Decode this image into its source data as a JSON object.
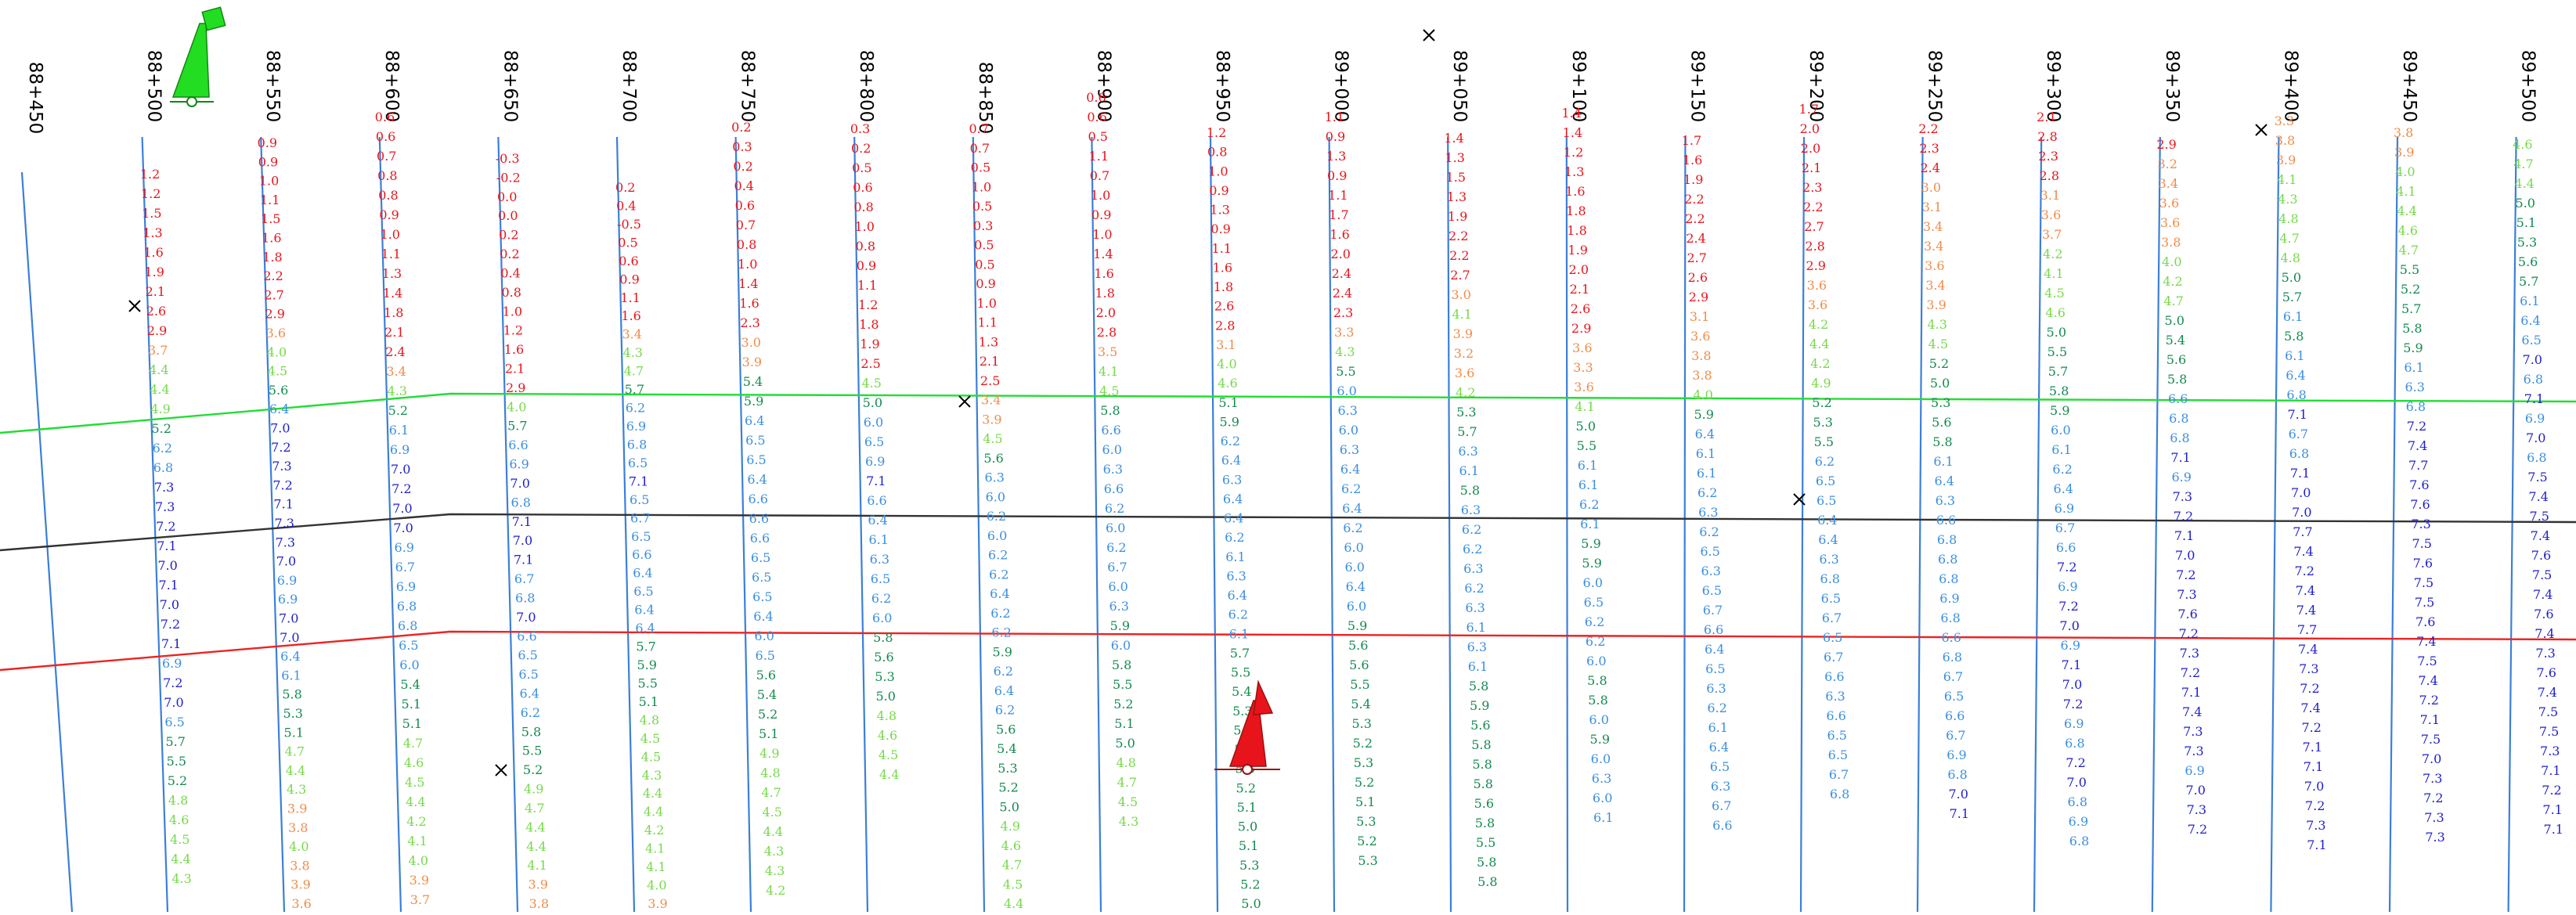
{
  "stations": [
    "88+450",
    "88+500",
    "88+550",
    "88+600",
    "88+650",
    "88+700",
    "88+750",
    "88+800",
    "88+850",
    "88+900",
    "88+950",
    "89+000",
    "89+050",
    "89+100",
    "89+150",
    "89+200",
    "89+250",
    "89+300",
    "89+350",
    "89+400",
    "89+450",
    "89+500"
  ],
  "depth_colors": {
    "red": "#e8141b",
    "orange": "#f08c4a",
    "light_green": "#77d94a",
    "green": "#138a4f",
    "light_blue": "#3b8fe0",
    "blue": "#1f1fcc"
  },
  "line_colors": {
    "station_line": "#3b7fd9",
    "top_line": "#22dd33",
    "mid_line": "#333333",
    "bottom_line": "#ee2222"
  },
  "icons": [
    "green-buoy-icon",
    "red-buoy-icon",
    "x-marker-icon"
  ],
  "soundings": [
    {
      "station": "88+500",
      "values": [
        "1.2",
        "1.2",
        "1.5",
        "1.3",
        "1.6",
        "1.9",
        "2.1",
        "2.6",
        "2.9",
        "3.7",
        "4.4",
        "4.4",
        "4.9",
        "5.2",
        "6.2",
        "6.8",
        "7.3",
        "7.3",
        "7.2",
        "7.1",
        "7.0",
        "7.1",
        "7.0",
        "7.2",
        "7.1",
        "6.9",
        "7.2",
        "7.0",
        "6.5",
        "5.7",
        "5.5",
        "5.2",
        "4.8",
        "4.6",
        "4.5",
        "4.4",
        "4.3"
      ]
    },
    {
      "station": "88+550",
      "values": [
        "0.9",
        "0.9",
        "1.0",
        "1.1",
        "1.5",
        "1.6",
        "1.8",
        "2.2",
        "2.7",
        "2.9",
        "3.6",
        "4.0",
        "4.5",
        "5.6",
        "6.4",
        "7.0",
        "7.2",
        "7.3",
        "7.2",
        "7.1",
        "7.3",
        "7.3",
        "7.0",
        "6.9",
        "6.9",
        "7.0",
        "7.0",
        "6.4",
        "6.1",
        "5.8",
        "5.3",
        "5.1",
        "4.7",
        "4.4",
        "4.3",
        "3.9",
        "3.8",
        "4.0",
        "3.8",
        "3.9",
        "3.6"
      ]
    },
    {
      "station": "88+600",
      "values": [
        "0.6",
        "0.6",
        "0.7",
        "0.8",
        "0.8",
        "0.9",
        "1.0",
        "1.1",
        "1.3",
        "1.4",
        "1.8",
        "2.1",
        "2.4",
        "3.4",
        "4.3",
        "5.2",
        "6.1",
        "6.9",
        "7.0",
        "7.2",
        "7.0",
        "7.0",
        "6.9",
        "6.7",
        "6.9",
        "6.8",
        "6.8",
        "6.5",
        "6.0",
        "5.4",
        "5.1",
        "5.1",
        "4.7",
        "4.6",
        "4.5",
        "4.4",
        "4.2",
        "4.1",
        "4.0",
        "3.9",
        "3.7"
      ]
    },
    {
      "station": "88+650",
      "values": [
        "-0.3",
        "-0.2",
        "0.0",
        "0.0",
        "0.2",
        "0.2",
        "0.4",
        "0.8",
        "1.0",
        "1.2",
        "1.6",
        "2.1",
        "2.9",
        "4.0",
        "5.7",
        "6.6",
        "6.9",
        "7.0",
        "6.8",
        "7.1",
        "7.0",
        "7.1",
        "6.7",
        "6.8",
        "7.0",
        "6.6",
        "6.5",
        "6.5",
        "6.4",
        "6.2",
        "5.8",
        "5.5",
        "5.2",
        "4.9",
        "4.7",
        "4.4",
        "4.4",
        "4.1",
        "3.9",
        "3.8"
      ]
    },
    {
      "station": "88+700",
      "values": [
        "0.2",
        "0.4",
        "-0.5",
        "0.5",
        "0.6",
        "0.9",
        "1.1",
        "1.6",
        "3.4",
        "4.3",
        "4.7",
        "5.7",
        "6.2",
        "6.9",
        "6.8",
        "6.5",
        "7.1",
        "6.5",
        "6.7",
        "6.5",
        "6.6",
        "6.4",
        "6.5",
        "6.4",
        "6.4",
        "5.7",
        "5.9",
        "5.5",
        "5.1",
        "4.8",
        "4.5",
        "4.5",
        "4.3",
        "4.4",
        "4.4",
        "4.2",
        "4.1",
        "4.1",
        "4.0",
        "3.9"
      ]
    },
    {
      "station": "88+750",
      "values": [
        "0.2",
        "0.3",
        "0.2",
        "0.4",
        "0.6",
        "0.7",
        "0.8",
        "1.0",
        "1.4",
        "1.6",
        "2.3",
        "3.0",
        "3.9",
        "5.4",
        "5.9",
        "6.4",
        "6.5",
        "6.5",
        "6.4",
        "6.6",
        "6.6",
        "6.6",
        "6.5",
        "6.5",
        "6.5",
        "6.4",
        "6.0",
        "6.5",
        "5.6",
        "5.4",
        "5.2",
        "5.1",
        "4.9",
        "4.8",
        "4.7",
        "4.5",
        "4.4",
        "4.3",
        "4.3",
        "4.2"
      ]
    },
    {
      "station": "88+800",
      "values": [
        "0.3",
        "0.2",
        "0.5",
        "0.6",
        "0.8",
        "1.0",
        "0.8",
        "0.9",
        "1.1",
        "1.2",
        "1.8",
        "1.9",
        "2.5",
        "4.5",
        "5.0",
        "6.0",
        "6.5",
        "6.9",
        "7.1",
        "6.6",
        "6.4",
        "6.1",
        "6.3",
        "6.5",
        "6.2",
        "6.0",
        "5.8",
        "5.6",
        "5.3",
        "5.0",
        "4.8",
        "4.6",
        "4.5",
        "4.4"
      ]
    },
    {
      "station": "88+850",
      "values": [
        "0.7",
        "0.7",
        "0.5",
        "1.0",
        "0.5",
        "0.3",
        "0.5",
        "0.5",
        "0.9",
        "1.0",
        "1.1",
        "1.3",
        "2.1",
        "2.5",
        "3.4",
        "3.9",
        "4.5",
        "5.6",
        "6.3",
        "6.0",
        "6.2",
        "6.0",
        "6.2",
        "6.2",
        "6.4",
        "6.2",
        "6.2",
        "5.9",
        "6.2",
        "6.4",
        "6.2",
        "5.6",
        "5.4",
        "5.3",
        "5.2",
        "5.0",
        "4.9",
        "4.6",
        "4.7",
        "4.5",
        "4.4"
      ]
    },
    {
      "station": "88+900",
      "values": [
        "0.6",
        "0.6",
        "0.5",
        "1.1",
        "0.7",
        "1.0",
        "0.9",
        "1.0",
        "1.4",
        "1.6",
        "1.8",
        "2.0",
        "2.8",
        "3.5",
        "4.1",
        "4.5",
        "5.8",
        "6.6",
        "6.0",
        "6.3",
        "6.6",
        "6.2",
        "6.0",
        "6.2",
        "6.7",
        "6.0",
        "6.3",
        "5.9",
        "6.0",
        "5.8",
        "5.5",
        "5.2",
        "5.1",
        "5.0",
        "4.8",
        "4.7",
        "4.5",
        "4.3"
      ]
    },
    {
      "station": "88+950",
      "values": [
        "1.2",
        "0.8",
        "1.0",
        "0.9",
        "1.3",
        "0.9",
        "1.1",
        "1.6",
        "1.8",
        "2.6",
        "2.8",
        "3.1",
        "4.0",
        "4.6",
        "5.1",
        "5.9",
        "6.2",
        "6.4",
        "6.3",
        "6.4",
        "6.4",
        "6.2",
        "6.1",
        "6.3",
        "6.4",
        "6.2",
        "6.1",
        "5.7",
        "5.5",
        "5.4",
        "5.3",
        "5.3",
        "5.4",
        "5.3",
        "5.2",
        "5.1",
        "5.0",
        "5.1",
        "5.3",
        "5.2",
        "5.0"
      ]
    },
    {
      "station": "89+000",
      "values": [
        "1.1",
        "0.9",
        "1.3",
        "0.9",
        "1.1",
        "1.7",
        "1.6",
        "2.0",
        "2.4",
        "2.4",
        "2.3",
        "3.3",
        "4.3",
        "5.5",
        "6.0",
        "6.3",
        "6.0",
        "6.3",
        "6.4",
        "6.2",
        "6.4",
        "6.2",
        "6.0",
        "6.0",
        "6.4",
        "6.0",
        "5.9",
        "5.6",
        "5.6",
        "5.5",
        "5.4",
        "5.3",
        "5.2",
        "5.3",
        "5.2",
        "5.1",
        "5.3",
        "5.2",
        "5.3"
      ]
    },
    {
      "station": "89+050",
      "values": [
        "1.4",
        "1.3",
        "1.5",
        "1.3",
        "1.9",
        "2.2",
        "2.2",
        "2.7",
        "3.0",
        "4.1",
        "3.9",
        "3.2",
        "3.6",
        "4.2",
        "5.3",
        "5.7",
        "6.3",
        "6.1",
        "5.8",
        "6.3",
        "6.2",
        "6.2",
        "6.3",
        "6.2",
        "6.3",
        "6.1",
        "6.3",
        "6.1",
        "5.8",
        "5.9",
        "5.6",
        "5.8",
        "5.8",
        "5.8",
        "5.6",
        "5.8",
        "5.5",
        "5.8",
        "5.8"
      ]
    },
    {
      "station": "89+100",
      "values": [
        "1.4",
        "1.4",
        "1.2",
        "1.3",
        "1.6",
        "1.8",
        "1.8",
        "1.9",
        "2.0",
        "2.1",
        "2.6",
        "2.9",
        "3.6",
        "3.3",
        "3.6",
        "4.1",
        "5.0",
        "5.5",
        "6.1",
        "6.1",
        "6.2",
        "6.1",
        "5.9",
        "5.9",
        "6.0",
        "6.5",
        "6.2",
        "6.2",
        "6.0",
        "5.8",
        "5.8",
        "6.0",
        "5.9",
        "6.0",
        "6.3",
        "6.0",
        "6.1"
      ]
    },
    {
      "station": "89+150",
      "values": [
        "1.7",
        "1.6",
        "1.9",
        "2.2",
        "2.2",
        "2.4",
        "2.7",
        "2.6",
        "2.9",
        "3.1",
        "3.6",
        "3.8",
        "3.8",
        "4.0",
        "5.9",
        "6.4",
        "6.1",
        "6.1",
        "6.2",
        "6.3",
        "6.2",
        "6.5",
        "6.3",
        "6.5",
        "6.7",
        "6.6",
        "6.4",
        "6.5",
        "6.3",
        "6.2",
        "6.1",
        "6.4",
        "6.5",
        "6.3",
        "6.7",
        "6.6"
      ]
    },
    {
      "station": "89+200",
      "values": [
        "1.7",
        "2.0",
        "2.0",
        "2.1",
        "2.3",
        "2.2",
        "2.7",
        "2.8",
        "2.9",
        "3.6",
        "3.6",
        "4.2",
        "4.4",
        "4.2",
        "4.9",
        "5.2",
        "5.3",
        "5.5",
        "6.2",
        "6.5",
        "6.5",
        "6.4",
        "6.4",
        "6.3",
        "6.8",
        "6.5",
        "6.7",
        "6.5",
        "6.7",
        "6.6",
        "6.3",
        "6.6",
        "6.5",
        "6.5",
        "6.7",
        "6.8"
      ]
    },
    {
      "station": "89+250",
      "values": [
        "2.2",
        "2.3",
        "2.4",
        "3.0",
        "3.1",
        "3.4",
        "3.4",
        "3.6",
        "3.4",
        "3.9",
        "4.3",
        "4.5",
        "5.2",
        "5.0",
        "5.3",
        "5.6",
        "5.8",
        "6.1",
        "6.4",
        "6.3",
        "6.6",
        "6.8",
        "6.8",
        "6.8",
        "6.9",
        "6.8",
        "6.6",
        "6.8",
        "6.7",
        "6.5",
        "6.6",
        "6.7",
        "6.9",
        "6.8",
        "7.0",
        "7.1"
      ]
    },
    {
      "station": "89+300",
      "values": [
        "2.1",
        "2.8",
        "2.3",
        "2.8",
        "3.1",
        "3.6",
        "3.7",
        "4.2",
        "4.1",
        "4.5",
        "4.6",
        "5.0",
        "5.5",
        "5.7",
        "5.8",
        "5.9",
        "6.0",
        "6.1",
        "6.2",
        "6.4",
        "6.9",
        "6.7",
        "6.6",
        "7.2",
        "6.9",
        "7.2",
        "7.0",
        "6.9",
        "7.1",
        "7.0",
        "7.2",
        "6.9",
        "6.8",
        "7.2",
        "7.0",
        "6.8",
        "6.9",
        "6.8"
      ]
    },
    {
      "station": "89+350",
      "values": [
        "2.9",
        "3.2",
        "3.4",
        "3.6",
        "3.6",
        "3.8",
        "4.0",
        "4.2",
        "4.7",
        "5.0",
        "5.4",
        "5.6",
        "5.8",
        "6.6",
        "6.8",
        "6.8",
        "7.1",
        "6.9",
        "7.3",
        "7.2",
        "7.1",
        "7.0",
        "7.2",
        "7.3",
        "7.6",
        "7.2",
        "7.3",
        "7.2",
        "7.1",
        "7.4",
        "7.3",
        "7.3",
        "6.9",
        "7.0",
        "7.3",
        "7.2"
      ]
    },
    {
      "station": "89+400",
      "values": [
        "3.3",
        "3.8",
        "3.9",
        "4.1",
        "4.3",
        "4.8",
        "4.7",
        "4.8",
        "5.0",
        "5.7",
        "6.1",
        "5.8",
        "6.1",
        "6.4",
        "6.8",
        "7.1",
        "6.7",
        "6.8",
        "7.1",
        "7.0",
        "7.0",
        "7.7",
        "7.4",
        "7.2",
        "7.4",
        "7.4",
        "7.7",
        "7.4",
        "7.3",
        "7.2",
        "7.4",
        "7.2",
        "7.1",
        "7.1",
        "7.0",
        "7.2",
        "7.3",
        "7.1"
      ]
    },
    {
      "station": "89+450",
      "values": [
        "3.8",
        "3.9",
        "4.0",
        "4.1",
        "4.4",
        "4.6",
        "4.7",
        "5.5",
        "5.2",
        "5.7",
        "5.8",
        "5.9",
        "6.1",
        "6.3",
        "6.8",
        "7.2",
        "7.4",
        "7.7",
        "7.6",
        "7.6",
        "7.3",
        "7.5",
        "7.6",
        "7.5",
        "7.5",
        "7.6",
        "7.4",
        "7.5",
        "7.4",
        "7.2",
        "7.1",
        "7.5",
        "7.0",
        "7.3",
        "7.2",
        "7.3",
        "7.3"
      ]
    },
    {
      "station": "89+500",
      "values": [
        "4.6",
        "4.7",
        "4.4",
        "5.0",
        "5.1",
        "5.3",
        "5.6",
        "5.7",
        "6.1",
        "6.4",
        "6.5",
        "7.0",
        "6.8",
        "7.1",
        "6.9",
        "7.0",
        "6.8",
        "7.5",
        "7.4",
        "7.5",
        "7.4",
        "7.6",
        "7.5",
        "7.4",
        "7.6",
        "7.4",
        "7.3",
        "7.6",
        "7.4",
        "7.5",
        "7.5",
        "7.3",
        "7.1",
        "7.2",
        "7.1",
        "7.1"
      ]
    }
  ]
}
